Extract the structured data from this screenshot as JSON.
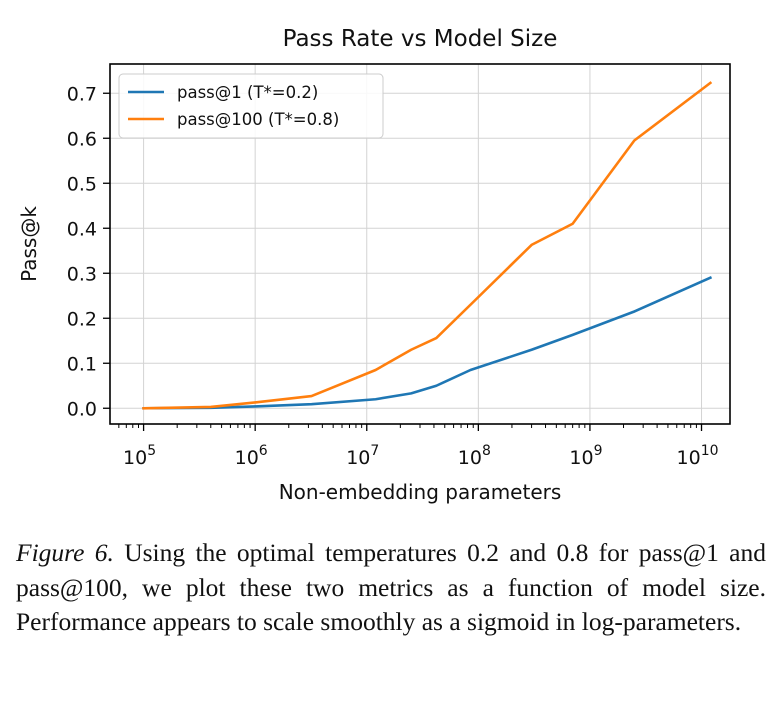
{
  "chart_data": {
    "type": "line",
    "title": "Pass Rate vs Model Size",
    "xlabel": "Non-embedding parameters",
    "ylabel": "Pass@k",
    "xscale": "log",
    "xlim": [
      50000,
      18000000000
    ],
    "ylim": [
      -0.035,
      0.765
    ],
    "x_ticks": [
      {
        "value": 100000,
        "base": "10",
        "exp": "5"
      },
      {
        "value": 1000000,
        "base": "10",
        "exp": "6"
      },
      {
        "value": 10000000,
        "base": "10",
        "exp": "7"
      },
      {
        "value": 100000000,
        "base": "10",
        "exp": "8"
      },
      {
        "value": 1000000000,
        "base": "10",
        "exp": "9"
      },
      {
        "value": 10000000000,
        "base": "10",
        "exp": "10"
      }
    ],
    "y_ticks": [
      {
        "value": 0.0,
        "label": "0.0"
      },
      {
        "value": 0.1,
        "label": "0.1"
      },
      {
        "value": 0.2,
        "label": "0.2"
      },
      {
        "value": 0.3,
        "label": "0.3"
      },
      {
        "value": 0.4,
        "label": "0.4"
      },
      {
        "value": 0.5,
        "label": "0.5"
      },
      {
        "value": 0.6,
        "label": "0.6"
      },
      {
        "value": 0.7,
        "label": "0.7"
      }
    ],
    "grid": true,
    "legend_position": "top-left",
    "series": [
      {
        "name": "pass@1 (T*=0.2)",
        "color": "#1f77b4",
        "x": [
          100000,
          400000,
          1000000,
          3200000,
          12000000,
          25000000,
          42000000,
          85000000,
          300000000,
          700000000,
          2500000000,
          12000000000
        ],
        "values": [
          0.0,
          0.001,
          0.004,
          0.009,
          0.02,
          0.033,
          0.05,
          0.085,
          0.13,
          0.163,
          0.215,
          0.29
        ]
      },
      {
        "name": "pass@100 (T*=0.8)",
        "color": "#ff7f0e",
        "x": [
          100000,
          400000,
          1000000,
          3200000,
          12000000,
          25000000,
          42000000,
          85000000,
          300000000,
          700000000,
          2500000000,
          12000000000
        ],
        "values": [
          0.0,
          0.003,
          0.013,
          0.027,
          0.085,
          0.13,
          0.156,
          0.23,
          0.363,
          0.41,
          0.595,
          0.723
        ]
      }
    ]
  },
  "caption": {
    "label": "Figure 6.",
    "text": " Using the optimal temperatures 0.2 and 0.8 for pass@1 and pass@100, we plot these two metrics as a function of model size. Performance appears to scale smoothly as a sigmoid in log-parameters."
  }
}
